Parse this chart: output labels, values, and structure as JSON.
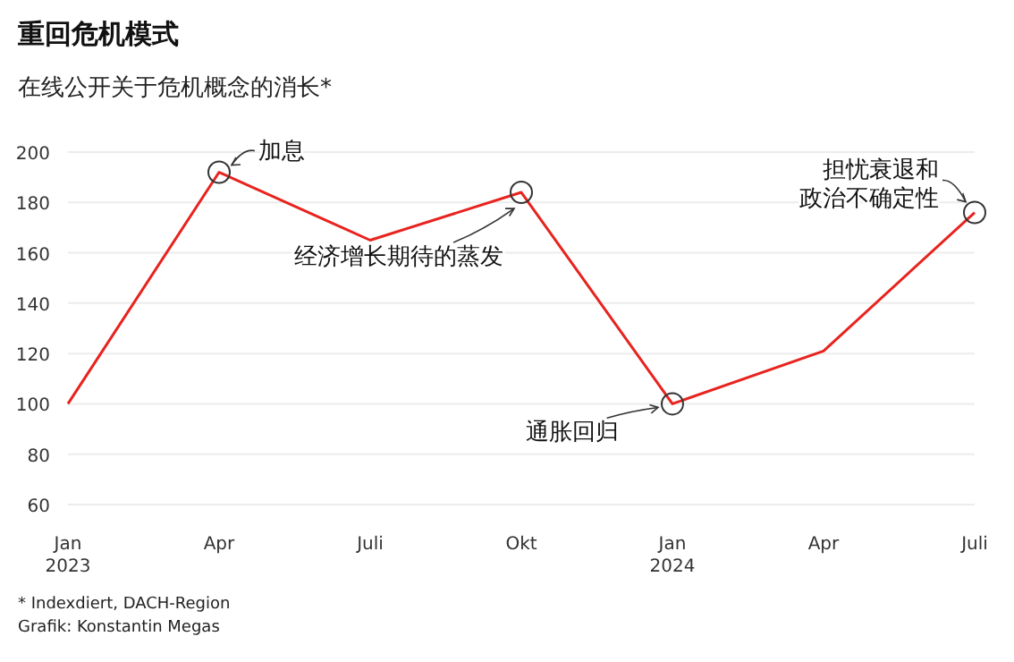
{
  "chart_data": {
    "type": "line",
    "title": "重回危机模式",
    "subtitle": "在线公开关于危机概念的消长*",
    "categories": [
      "Jan\n2023",
      "Apr",
      "Juli",
      "Okt",
      "Jan\n2024",
      "Apr",
      "Juli"
    ],
    "series": [
      {
        "color": "#e8231e",
        "values": [
          100,
          192,
          165,
          184,
          100,
          121,
          176
        ]
      }
    ],
    "ylim": [
      60,
      200
    ],
    "yticks": [
      60,
      80,
      100,
      120,
      140,
      160,
      180,
      200
    ],
    "grid": "y",
    "annotations": [
      {
        "text": "加息",
        "x": "Apr",
        "y": 192
      },
      {
        "text": "经济增长期待的蒸发",
        "x": "Okt",
        "y": 184
      },
      {
        "text": "通胀回归",
        "x": "Jan\n2024",
        "y": 100
      },
      "担忧衰退和政治不确定性",
      "* Indexdiert, DACH-Region",
      "Grafik: Konstantin Megas"
    ]
  }
}
